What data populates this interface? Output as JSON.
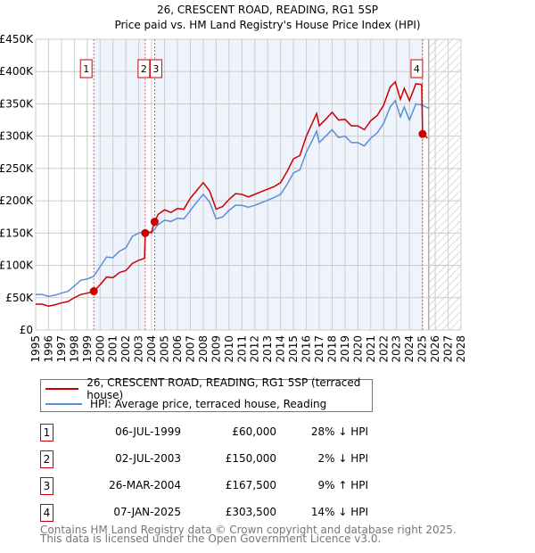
{
  "chart_data": {
    "type": "line",
    "title": "26, CRESCENT ROAD, READING, RG1 5SP",
    "subtitle": "Price paid vs. HM Land Registry's House Price Index (HPI)",
    "xlim": [
      1995,
      2028
    ],
    "ylim": [
      0,
      450000
    ],
    "x_ticks": [
      "1995",
      "1996",
      "1997",
      "1998",
      "1999",
      "2000",
      "2001",
      "2002",
      "2003",
      "2004",
      "2005",
      "2006",
      "2007",
      "2008",
      "2009",
      "2010",
      "2011",
      "2012",
      "2013",
      "2014",
      "2015",
      "2016",
      "2017",
      "2018",
      "2019",
      "2020",
      "2021",
      "2022",
      "2023",
      "2024",
      "2025",
      "2026",
      "2027",
      "2028"
    ],
    "y_ticks": [
      {
        "v": 0,
        "l": "£0"
      },
      {
        "v": 50000,
        "l": "£50K"
      },
      {
        "v": 100000,
        "l": "£100K"
      },
      {
        "v": 150000,
        "l": "£150K"
      },
      {
        "v": 200000,
        "l": "£200K"
      },
      {
        "v": 250000,
        "l": "£250K"
      },
      {
        "v": 300000,
        "l": "£300K"
      },
      {
        "v": 350000,
        "l": "£350K"
      },
      {
        "v": 400000,
        "l": "£400K"
      },
      {
        "v": 450000,
        "l": "£450K"
      }
    ],
    "grid": true,
    "forecast_hatch_from": 2025.5,
    "series": [
      {
        "name": "26, CRESCENT ROAD, READING, RG1 5SP (terraced house)",
        "color": "#cc0000",
        "x": [
          1995,
          1995.5,
          1996,
          1996.5,
          1997,
          1997.5,
          1998,
          1998.5,
          1999,
          1999.51,
          2000,
          2000.5,
          2001,
          2001.5,
          2002,
          2002.5,
          2003,
          2003.45,
          2003.5,
          2004,
          2004.23,
          2004.5,
          2005,
          2005.5,
          2006,
          2006.5,
          2007,
          2007.5,
          2008,
          2008.5,
          2009,
          2009.5,
          2010,
          2010.5,
          2011,
          2011.5,
          2012,
          2012.5,
          2013,
          2013.5,
          2014,
          2014.5,
          2015,
          2015.5,
          2016,
          2016.5,
          2016.8,
          2017,
          2017.5,
          2018,
          2018.5,
          2019,
          2019.5,
          2020,
          2020.5,
          2021,
          2021.5,
          2022,
          2022.5,
          2022.9,
          2023.3,
          2023.6,
          2024,
          2024.5,
          2024.95,
          2025.02,
          2025.4
        ],
        "y": [
          40000,
          40000,
          37000,
          39000,
          42000,
          44000,
          50000,
          55000,
          57000,
          60000,
          70000,
          82000,
          81000,
          89000,
          92000,
          103000,
          108000,
          111000,
          150000,
          152000,
          167500,
          179000,
          186000,
          182000,
          188000,
          187000,
          204000,
          216000,
          228000,
          215000,
          187000,
          191000,
          202000,
          211000,
          210000,
          206000,
          210000,
          214000,
          218000,
          222000,
          228000,
          245000,
          265000,
          270000,
          300000,
          322000,
          335000,
          316000,
          326000,
          337000,
          325000,
          326000,
          316000,
          316000,
          310000,
          324000,
          332000,
          348000,
          376000,
          384000,
          357000,
          374000,
          355000,
          381000,
          380000,
          303500,
          297000
        ]
      },
      {
        "name": "HPI: Average price, terraced house, Reading",
        "color": "#5b8fd4",
        "x": [
          1995,
          1995.5,
          1996,
          1996.5,
          1997,
          1997.5,
          1998,
          1998.5,
          1999,
          1999.5,
          2000,
          2000.5,
          2001,
          2001.5,
          2002,
          2002.5,
          2003,
          2003.5,
          2004,
          2004.5,
          2005,
          2005.5,
          2006,
          2006.5,
          2007,
          2007.5,
          2008,
          2008.5,
          2009,
          2009.5,
          2010,
          2010.5,
          2011,
          2011.5,
          2012,
          2012.5,
          2013,
          2013.5,
          2014,
          2014.5,
          2015,
          2015.5,
          2016,
          2016.5,
          2016.8,
          2017,
          2017.5,
          2018,
          2018.5,
          2019,
          2019.5,
          2020,
          2020.5,
          2021,
          2021.5,
          2022,
          2022.5,
          2022.9,
          2023.3,
          2023.6,
          2024,
          2024.5,
          2025,
          2025.5
        ],
        "y": [
          55000,
          55000,
          52000,
          54000,
          57000,
          60000,
          68000,
          77000,
          79000,
          83000,
          98000,
          113000,
          112000,
          122000,
          127000,
          145000,
          150000,
          153000,
          150000,
          163000,
          170000,
          168000,
          173000,
          172000,
          185000,
          198000,
          210000,
          198000,
          172000,
          175000,
          185000,
          193000,
          193000,
          190000,
          193000,
          197000,
          201000,
          205000,
          210000,
          225000,
          243000,
          248000,
          275000,
          295000,
          308000,
          290000,
          300000,
          310000,
          298000,
          300000,
          290000,
          290000,
          285000,
          297000,
          305000,
          320000,
          345000,
          355000,
          330000,
          345000,
          325000,
          350000,
          348000,
          343000
        ]
      }
    ],
    "sales": [
      {
        "n": "1",
        "x": 1999.51,
        "y": 60000,
        "date": "06-JUL-1999",
        "price": "£60,000",
        "hpi": "28% ↓ HPI"
      },
      {
        "n": "2",
        "x": 2003.5,
        "y": 150000,
        "date": "02-JUL-2003",
        "price": "£150,000",
        "hpi": "2% ↓ HPI"
      },
      {
        "n": "3",
        "x": 2004.23,
        "y": 167500,
        "date": "26-MAR-2004",
        "price": "£167,500",
        "hpi": "9% ↑ HPI"
      },
      {
        "n": "4",
        "x": 2025.02,
        "y": 303500,
        "date": "07-JAN-2025",
        "price": "£303,500",
        "hpi": "14% ↓ HPI"
      }
    ]
  },
  "footer": {
    "line1": "Contains HM Land Registry data © Crown copyright and database right 2025.",
    "line2": "This data is licensed under the Open Government Licence v3.0."
  }
}
